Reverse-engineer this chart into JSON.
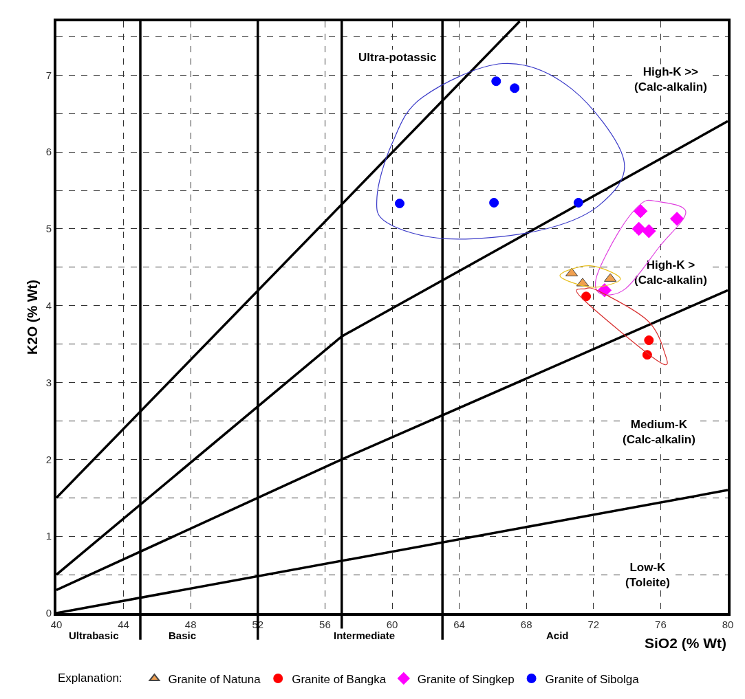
{
  "chart_data": {
    "type": "scatter",
    "xlabel": "SiO2 (% Wt)",
    "ylabel": "K2O (% Wt)",
    "legend_title": "Explanation:",
    "legend": "bottom",
    "grid": true,
    "xlim": [
      40,
      80
    ],
    "xticks": [
      40,
      44,
      48,
      52,
      56,
      60,
      64,
      68,
      72,
      76,
      80
    ],
    "ylim": [
      0,
      7.7
    ],
    "yticks": [
      0,
      {
        "value": 0.5,
        "label": null
      },
      1,
      {
        "value": 1.5,
        "label": null
      },
      2,
      {
        "value": 2.5,
        "label": null
      },
      3,
      {
        "value": 3.5,
        "label": null
      },
      4,
      {
        "value": 4.5,
        "label": null
      },
      5,
      {
        "value": 5.5,
        "label": null
      },
      6,
      {
        "value": 6.5,
        "label": null
      },
      7,
      {
        "value": 7.5,
        "label": null
      }
    ],
    "series": [
      {
        "type": "line",
        "color": "#000000",
        "x": [
          40,
          67.6
        ],
        "values": [
          1.5,
          7.7
        ]
      },
      {
        "type": "line",
        "color": "#000000",
        "x": [
          40,
          57,
          80
        ],
        "values": [
          0.5,
          3.6,
          6.4
        ]
      },
      {
        "type": "line",
        "color": "#000000",
        "x": [
          40,
          57,
          80
        ],
        "values": [
          0.3,
          2.0,
          4.2
        ]
      },
      {
        "type": "line",
        "color": "#000000",
        "x": [
          40,
          80
        ],
        "values": [
          0,
          1.6
        ]
      },
      {
        "type": "scatter",
        "name": "Granite of Natuna",
        "color": "#f0a050",
        "marker": "triangle",
        "x": [
          70.7,
          71.35,
          73.0
        ],
        "values": [
          4.42,
          4.29,
          4.35
        ]
      },
      {
        "type": "scatter",
        "name": "Granite of Bangka",
        "color": "#ff0000",
        "marker": "circle",
        "x": [
          71.56,
          75.3,
          75.2
        ],
        "values": [
          4.12,
          3.55,
          3.36
        ]
      },
      {
        "type": "scatter",
        "name": "Granite of Singkep",
        "color": "#ff00ff",
        "marker": "diamond",
        "x": [
          74.8,
          74.7,
          75.3,
          76.97,
          72.66
        ],
        "values": [
          5.23,
          5.0,
          4.97,
          5.13,
          4.2
        ]
      },
      {
        "type": "scatter",
        "name": "Granite of Sibolga",
        "color": "#0000ff",
        "marker": "circle",
        "x": [
          66.2,
          67.3,
          60.45,
          66.07,
          71.1
        ],
        "values": [
          6.92,
          6.83,
          5.33,
          5.34,
          5.34
        ]
      }
    ],
    "ref_lines": [
      {
        "axis": "x",
        "value": 45,
        "color": "#000000"
      },
      {
        "axis": "x",
        "value": 52,
        "color": "#000000"
      },
      {
        "axis": "x",
        "value": 57,
        "color": "#000000"
      },
      {
        "axis": "x",
        "value": 63,
        "color": "#000000"
      }
    ],
    "annotations": [
      "Ultrabasic",
      "Basic",
      "Intermediate",
      "Acid",
      "Ultra-potassic",
      "High-K >>\n(Calc-alkalin)",
      "High-K >\n(Calc-alkalin)",
      "Medium-K\n(Calc-alkalin)",
      "Low-K\n(Toleite)"
    ]
  }
}
